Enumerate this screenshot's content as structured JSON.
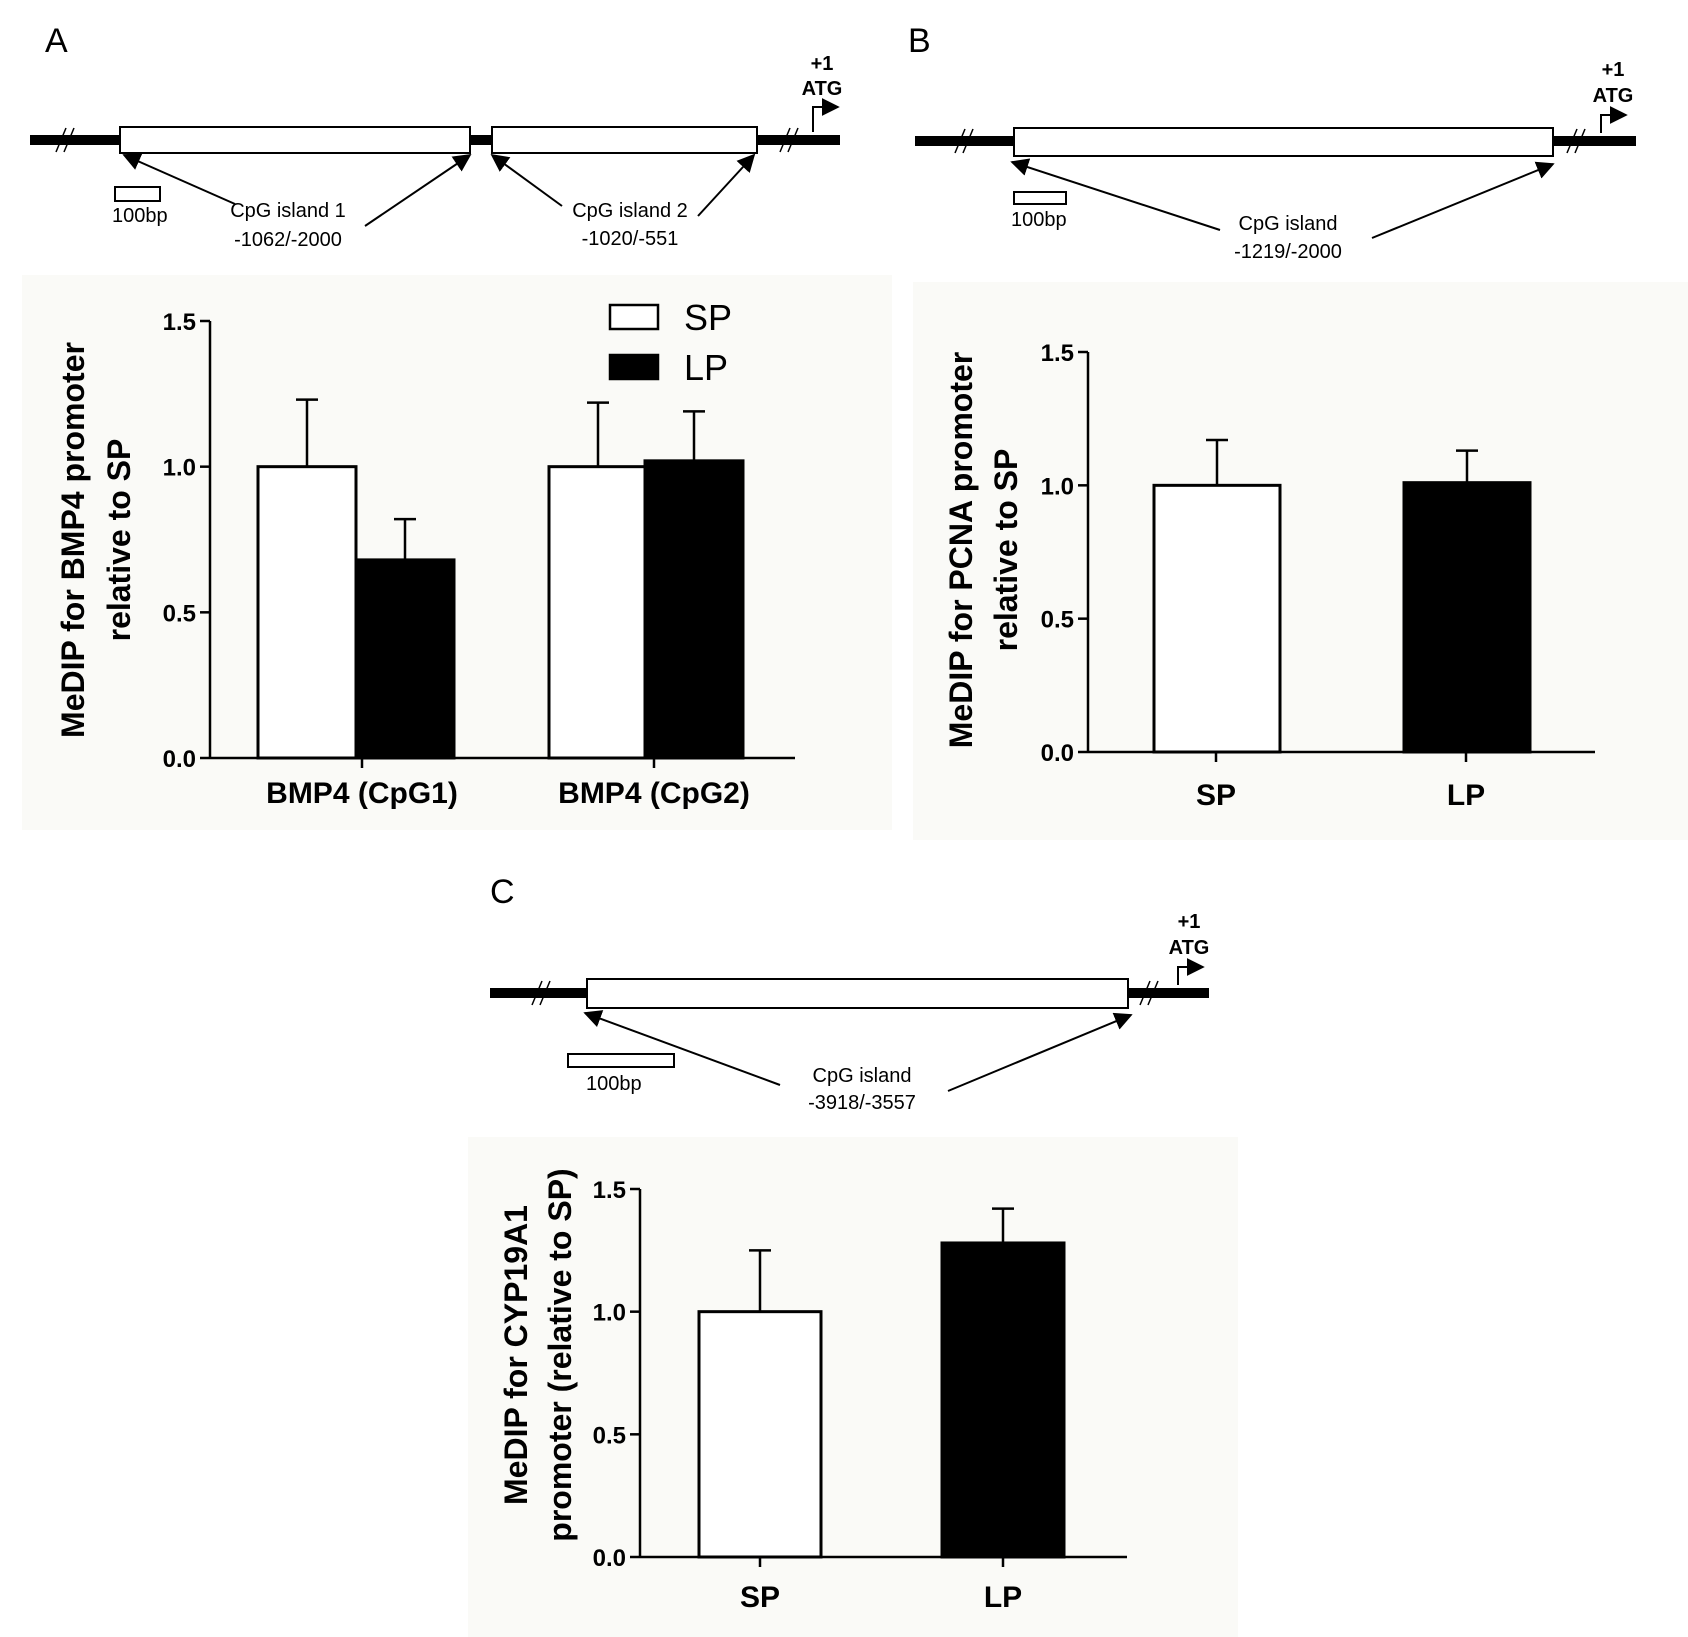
{
  "panels": {
    "A": {
      "letter": "A",
      "diagram": {
        "tss_plus": "+1",
        "tss_atg": "ATG",
        "scale_label": "100bp",
        "islands": [
          {
            "name": "CpG island 1",
            "range": "-1062/-2000"
          },
          {
            "name": "CpG island 2",
            "range": "-1020/-551"
          }
        ]
      },
      "legend": [
        "SP",
        "LP"
      ]
    },
    "B": {
      "letter": "B",
      "diagram": {
        "tss_plus": "+1",
        "tss_atg": "ATG",
        "scale_label": "100bp",
        "islands": [
          {
            "name": "CpG island",
            "range": "-1219/-2000"
          }
        ]
      }
    },
    "C": {
      "letter": "C",
      "diagram": {
        "tss_plus": "+1",
        "tss_atg": "ATG",
        "scale_label": "100bp",
        "islands": [
          {
            "name": "CpG island",
            "range": "-3918/-3557"
          }
        ]
      }
    }
  },
  "colors": {
    "SP": "#ffffff",
    "LP": "#000000",
    "axis": "#000000"
  },
  "chart_data": [
    {
      "panel": "A",
      "type": "bar",
      "categories": [
        "BMP4 (CpG1)",
        "BMP4 (CpG2)"
      ],
      "series": [
        {
          "name": "SP",
          "values": [
            1.0,
            1.0
          ],
          "errors": [
            0.23,
            0.22
          ]
        },
        {
          "name": "LP",
          "values": [
            0.68,
            1.02
          ],
          "errors": [
            0.14,
            0.17
          ]
        }
      ],
      "ylabel_lines": [
        "MeDIP for BMP4 promoter",
        "relative to SP"
      ],
      "ylim": [
        0,
        1.5
      ],
      "yticks": [
        "0.0",
        "0.5",
        "1.0",
        "1.5"
      ],
      "legend": "top-right"
    },
    {
      "panel": "B",
      "type": "bar",
      "categories": [
        "SP",
        "LP"
      ],
      "series": [
        {
          "name": "",
          "values": [
            1.0,
            1.01
          ],
          "errors": [
            0.17,
            0.12
          ]
        }
      ],
      "ylabel_lines": [
        "MeDIP for PCNA promoter",
        "relative to SP"
      ],
      "ylim": [
        0,
        1.5
      ],
      "yticks": [
        "0.0",
        "0.5",
        "1.0",
        "1.5"
      ]
    },
    {
      "panel": "C",
      "type": "bar",
      "categories": [
        "SP",
        "LP"
      ],
      "series": [
        {
          "name": "",
          "values": [
            1.0,
            1.28
          ],
          "errors": [
            0.25,
            0.14
          ]
        }
      ],
      "ylabel_lines": [
        "MeDIP for CYP19A1",
        "promoter (relative to SP)"
      ],
      "ylim": [
        0,
        1.5
      ],
      "yticks": [
        "0.0",
        "0.5",
        "1.0",
        "1.5"
      ]
    }
  ]
}
